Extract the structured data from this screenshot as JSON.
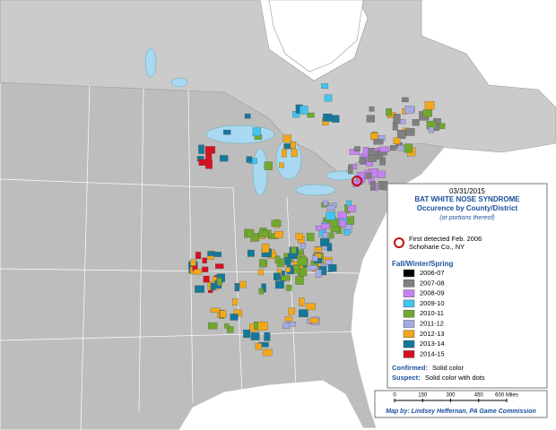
{
  "header": {
    "date": "03/31/2015",
    "title": "BAT WHITE NOSE SYNDROME",
    "subtitle": "Occurence by County/District",
    "note": "(or portions thereof)"
  },
  "first_detected": {
    "line1": "First detected Feb. 2006",
    "line2": "Schoharie Co., NY"
  },
  "legend": {
    "title": "Fall/Winter/Spring",
    "items": [
      {
        "label": "2006-07",
        "color": "#000000"
      },
      {
        "label": "2007-08",
        "color": "#808080"
      },
      {
        "label": "2008-09",
        "color": "#c583f0"
      },
      {
        "label": "2009-10",
        "color": "#3fc6f0"
      },
      {
        "label": "2010-11",
        "color": "#72a82e"
      },
      {
        "label": "2011-12",
        "color": "#a6aae2"
      },
      {
        "label": "2012-13",
        "color": "#f2a81a"
      },
      {
        "label": "2013-14",
        "color": "#13789a"
      },
      {
        "label": "2014-15",
        "color": "#d6101f"
      }
    ]
  },
  "key": {
    "confirmed_label": "Confirmed:",
    "confirmed_text": "Solid color",
    "suspect_label": "Suspect:",
    "suspect_text": "Solid color with dots"
  },
  "scale": {
    "ticks": [
      "0",
      "150",
      "300",
      "450",
      "600 Miles"
    ]
  },
  "credit": "Map by: Lindsey Heffernan, PA Game Commission"
}
